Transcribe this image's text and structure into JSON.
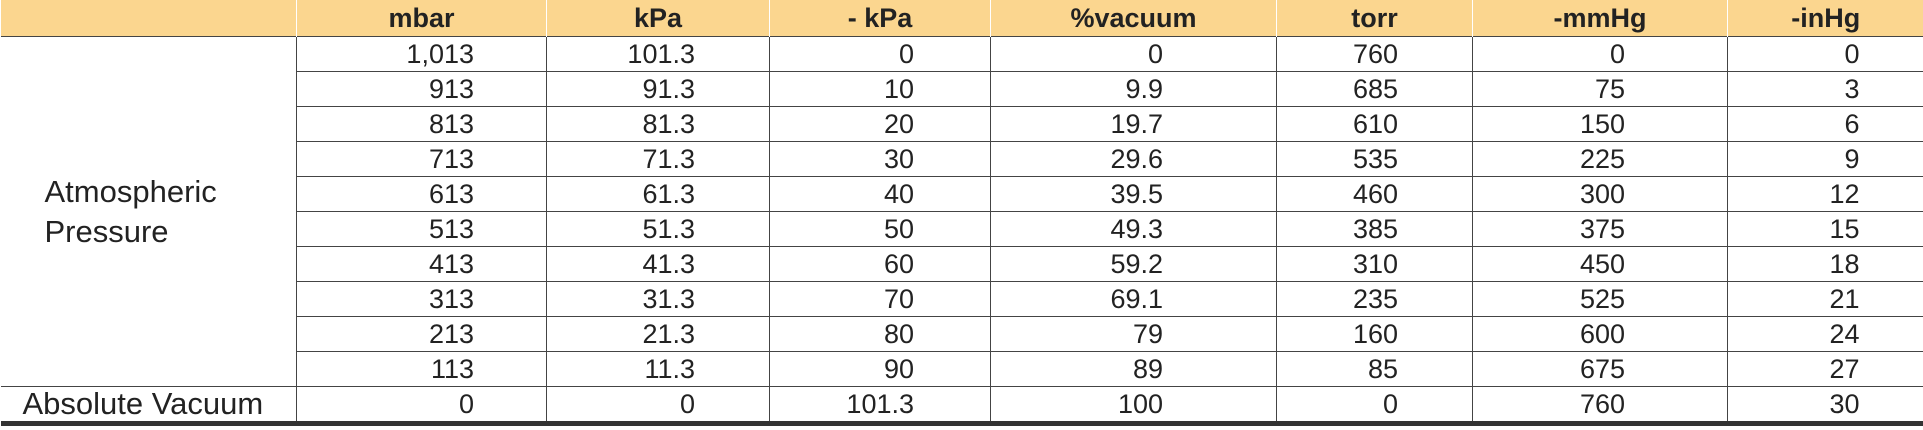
{
  "table": {
    "columns": [
      "mbar",
      "kPa",
      "- kPa",
      "%vacuum",
      "torr",
      "-mmHg",
      "-inHg"
    ],
    "groups": [
      {
        "label": "Atmospheric Pressure",
        "rows": [
          [
            "1,013",
            "101.3",
            "0",
            "0",
            "760",
            "0",
            "0"
          ],
          [
            "913",
            "91.3",
            "10",
            "9.9",
            "685",
            "75",
            "3"
          ],
          [
            "813",
            "81.3",
            "20",
            "19.7",
            "610",
            "150",
            "6"
          ],
          [
            "713",
            "71.3",
            "30",
            "29.6",
            "535",
            "225",
            "9"
          ],
          [
            "613",
            "61.3",
            "40",
            "39.5",
            "460",
            "300",
            "12"
          ],
          [
            "513",
            "51.3",
            "50",
            "49.3",
            "385",
            "375",
            "15"
          ],
          [
            "413",
            "41.3",
            "60",
            "59.2",
            "310",
            "450",
            "18"
          ],
          [
            "313",
            "31.3",
            "70",
            "69.1",
            "235",
            "525",
            "21"
          ],
          [
            "213",
            "21.3",
            "80",
            "79",
            "160",
            "600",
            "24"
          ],
          [
            "113",
            "11.3",
            "90",
            "89",
            "85",
            "675",
            "27"
          ]
        ]
      },
      {
        "label": "Absolute Vacuum",
        "rows": [
          [
            "0",
            "0",
            "101.3",
            "100",
            "0",
            "760",
            "30"
          ]
        ]
      }
    ]
  }
}
